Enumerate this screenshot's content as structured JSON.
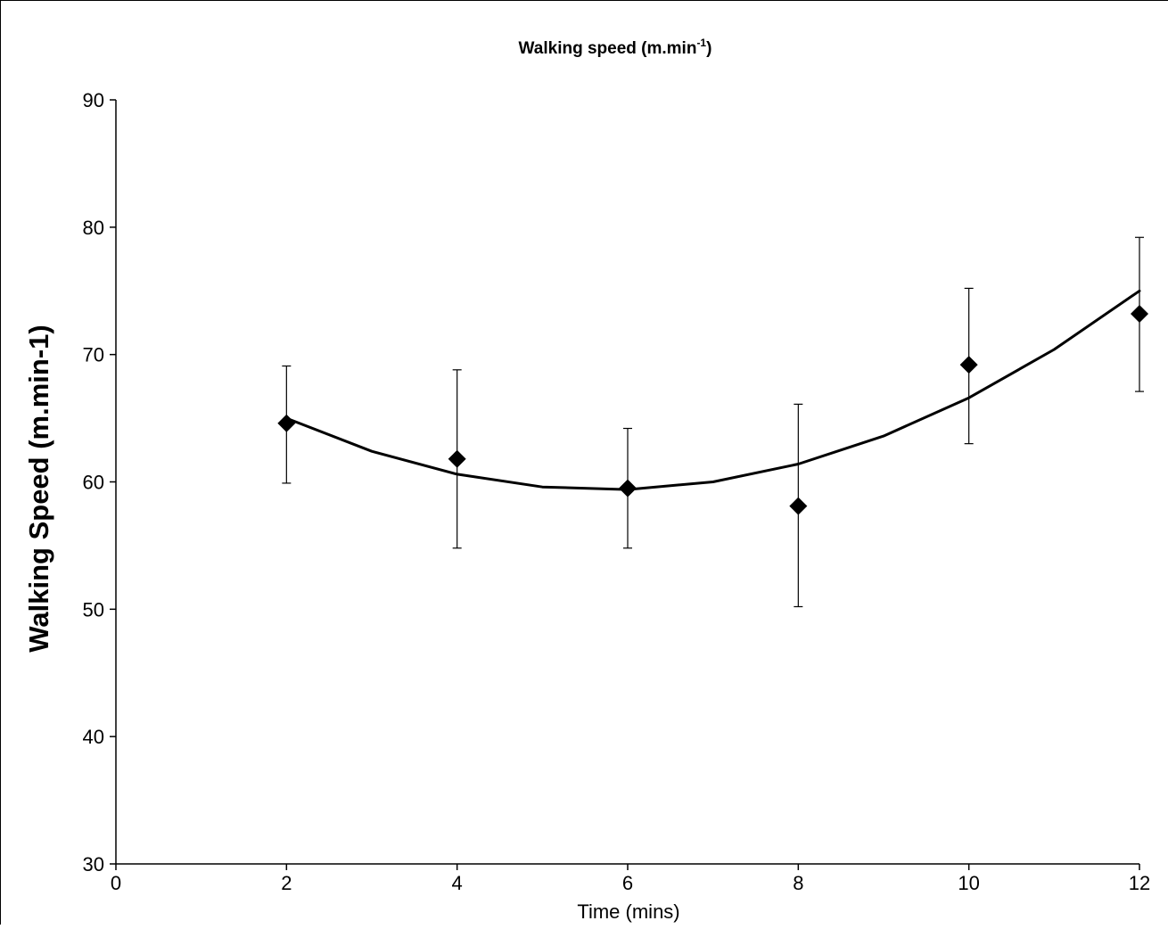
{
  "chart_data": {
    "type": "scatter",
    "title": "Walking speed  (m.min",
    "title_superscript": "-1",
    "title_suffix": ")",
    "xlabel": "Time (mins)",
    "ylabel": "Walking Speed (m.min-1)",
    "xlim": [
      0,
      12
    ],
    "ylim": [
      30,
      90
    ],
    "x_ticks": [
      0,
      2,
      4,
      6,
      8,
      10,
      12
    ],
    "y_ticks": [
      30,
      40,
      50,
      60,
      70,
      80,
      90
    ],
    "grid": false,
    "legend": "none",
    "series": [
      {
        "marker": "diamond",
        "color": "#000000",
        "x": [
          2,
          4,
          6,
          8,
          10,
          12
        ],
        "y": [
          64.6,
          61.8,
          59.5,
          58.1,
          69.2,
          73.2
        ],
        "error_low": [
          59.9,
          54.8,
          54.8,
          50.2,
          63.0,
          67.1
        ],
        "error_high": [
          69.1,
          68.8,
          64.2,
          66.1,
          75.2,
          79.2
        ]
      }
    ],
    "trendline": {
      "type": "polynomial-2",
      "color": "#000000",
      "x": [
        2,
        3,
        4,
        5,
        6,
        7,
        8,
        9,
        10,
        11,
        12
      ],
      "y": [
        65.0,
        62.4,
        60.6,
        59.6,
        59.4,
        60.0,
        61.4,
        63.6,
        66.6,
        70.4,
        75.0
      ]
    }
  }
}
